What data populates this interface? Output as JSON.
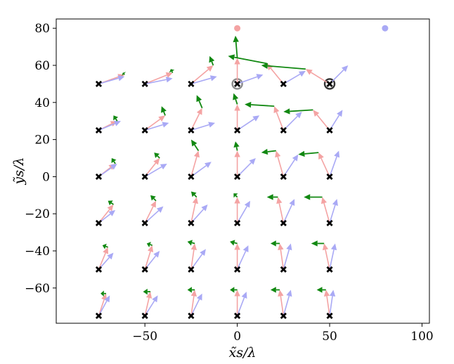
{
  "chart_data": {
    "type": "quiver",
    "title": "",
    "xlabel": "x̃s/λ",
    "ylabel": "ỹs/λ",
    "xlim": [
      -98,
      104
    ],
    "ylim": [
      -79,
      85
    ],
    "xticks": [
      -50,
      0,
      50,
      100
    ],
    "xtick_labels": [
      "−50",
      "0",
      "50",
      "100"
    ],
    "yticks": [
      -60,
      -40,
      -20,
      0,
      20,
      40,
      60,
      80
    ],
    "ytick_labels": [
      "−60",
      "−40",
      "−20",
      "0",
      "20",
      "40",
      "60",
      "80"
    ],
    "grid": false,
    "sources": [
      {
        "name": "source-pink",
        "x": 0,
        "y": 80,
        "color": "#f4a3a3"
      },
      {
        "name": "source-blue",
        "x": 80,
        "y": 80,
        "color": "#a9a9f5"
      }
    ],
    "highlighted_points": [
      {
        "x": 0,
        "y": 50,
        "style": "light-ring"
      },
      {
        "x": 50,
        "y": 50,
        "style": "dark-ring"
      }
    ],
    "grid_x": [
      -75,
      -50,
      -25,
      0,
      25,
      50
    ],
    "grid_y": [
      -75,
      -50,
      -25,
      0,
      25,
      50
    ],
    "colors": {
      "pink": "#f4a3a3",
      "blue": "#a9a9f5",
      "green": "#118811",
      "marker": "#000000"
    },
    "rows": [
      {
        "y": 50,
        "points": [
          {
            "x": -75,
            "pink": [
              14,
              5
            ],
            "blue": [
              14,
              4
            ],
            "green": [
              -1,
              1
            ]
          },
          {
            "x": -50,
            "pink": [
              15,
              6
            ],
            "blue": [
              15,
              3
            ],
            "green": [
              -1,
              2
            ]
          },
          {
            "x": -25,
            "pink": [
              12,
              10
            ],
            "blue": [
              14,
              4
            ],
            "green": [
              -2,
              5
            ]
          },
          {
            "x": 0,
            "pink": [
              0,
              14
            ],
            "blue": [
              14,
              5
            ],
            "green": [
              -1,
              12
            ]
          },
          {
            "x": 25,
            "pink": [
              -9,
              11
            ],
            "blue": [
              12,
              7
            ],
            "green": [
              -21,
              4
            ]
          },
          {
            "x": 50,
            "pink": [
              -13,
              8
            ],
            "blue": [
              10,
              10
            ],
            "green": [
              -24,
              2
            ]
          }
        ]
      },
      {
        "y": 25,
        "points": [
          {
            "x": -75,
            "pink": [
              10,
              5
            ],
            "blue": [
              12,
              5
            ],
            "green": [
              -2,
              3
            ]
          },
          {
            "x": -50,
            "pink": [
              11,
              8
            ],
            "blue": [
              13,
              4
            ],
            "green": [
              -2,
              5
            ]
          },
          {
            "x": -25,
            "pink": [
              6,
              12
            ],
            "blue": [
              13,
              4
            ],
            "green": [
              -3,
              7
            ]
          },
          {
            "x": 0,
            "pink": [
              0,
              14
            ],
            "blue": [
              12,
              8
            ],
            "green": [
              -2,
              6
            ]
          },
          {
            "x": 25,
            "pink": [
              -5,
              13
            ],
            "blue": [
              10,
              10
            ],
            "green": [
              -16,
              1
            ]
          },
          {
            "x": 50,
            "pink": [
              -9,
              11
            ],
            "blue": [
              7,
              11
            ],
            "green": [
              -16,
              -1
            ]
          }
        ]
      },
      {
        "y": 0,
        "points": [
          {
            "x": -75,
            "pink": [
              9,
              7
            ],
            "blue": [
              10,
              7
            ],
            "green": [
              -2,
              3
            ]
          },
          {
            "x": -50,
            "pink": [
              8,
              10
            ],
            "blue": [
              12,
              7
            ],
            "green": [
              -3,
              3
            ]
          },
          {
            "x": -25,
            "pink": [
              4,
              14
            ],
            "blue": [
              11,
              8
            ],
            "green": [
              -4,
              6
            ]
          },
          {
            "x": 0,
            "pink": [
              0,
              14
            ],
            "blue": [
              10,
              10
            ],
            "green": [
              -1,
              5
            ]
          },
          {
            "x": 25,
            "pink": [
              -4,
              14
            ],
            "blue": [
              8,
              12
            ],
            "green": [
              -8,
              -1
            ]
          },
          {
            "x": 50,
            "pink": [
              -6,
              13
            ],
            "blue": [
              5,
              14
            ],
            "green": [
              -11,
              -1
            ]
          }
        ]
      },
      {
        "y": -25,
        "points": [
          {
            "x": -75,
            "pink": [
              8,
              10
            ],
            "blue": [
              9,
              7
            ],
            "green": [
              -3,
              2
            ]
          },
          {
            "x": -50,
            "pink": [
              6,
              12
            ],
            "blue": [
              10,
              9
            ],
            "green": [
              -3,
              3
            ]
          },
          {
            "x": -25,
            "pink": [
              3,
              14
            ],
            "blue": [
              9,
              10
            ],
            "green": [
              -3,
              3
            ]
          },
          {
            "x": 0,
            "pink": [
              0,
              14
            ],
            "blue": [
              7,
              12
            ],
            "green": [
              -2,
              2
            ]
          },
          {
            "x": 25,
            "pink": [
              -3,
              14
            ],
            "blue": [
              6,
              13
            ],
            "green": [
              -6,
              0
            ]
          },
          {
            "x": 50,
            "pink": [
              -4,
              14
            ],
            "blue": [
              4,
              13
            ],
            "green": [
              -10,
              0
            ]
          }
        ]
      },
      {
        "y": -50,
        "points": [
          {
            "x": -75,
            "pink": [
              5,
              12
            ],
            "blue": [
              8,
              9
            ],
            "green": [
              -3,
              1
            ]
          },
          {
            "x": -50,
            "pink": [
              4,
              13
            ],
            "blue": [
              8,
              10
            ],
            "green": [
              -3,
              1
            ]
          },
          {
            "x": -25,
            "pink": [
              2,
              14
            ],
            "blue": [
              8,
              11
            ],
            "green": [
              -4,
              1
            ]
          },
          {
            "x": 0,
            "pink": [
              0,
              14
            ],
            "blue": [
              6,
              13
            ],
            "green": [
              -4,
              1
            ]
          },
          {
            "x": 25,
            "pink": [
              -2,
              14
            ],
            "blue": [
              4,
              14
            ],
            "green": [
              -5,
              0
            ]
          },
          {
            "x": 50,
            "pink": [
              -3,
              14
            ],
            "blue": [
              3,
              14
            ],
            "green": [
              -7,
              0
            ]
          }
        ]
      },
      {
        "y": -75,
        "points": [
          {
            "x": -75,
            "pink": [
              4,
              12
            ],
            "blue": [
              6,
              11
            ],
            "green": [
              -3,
              0
            ]
          },
          {
            "x": -50,
            "pink": [
              3,
              13
            ],
            "blue": [
              7,
              11
            ],
            "green": [
              -4,
              0
            ]
          },
          {
            "x": -25,
            "pink": [
              2,
              14
            ],
            "blue": [
              6,
              12
            ],
            "green": [
              -4,
              0
            ]
          },
          {
            "x": 0,
            "pink": [
              0,
              14
            ],
            "blue": [
              5,
              13
            ],
            "green": [
              -4,
              0
            ]
          },
          {
            "x": 25,
            "pink": [
              -2,
              14
            ],
            "blue": [
              4,
              14
            ],
            "green": [
              -5,
              0
            ]
          },
          {
            "x": 50,
            "pink": [
              -2,
              14
            ],
            "blue": [
              2,
              14
            ],
            "green": [
              -5,
              0
            ]
          }
        ]
      }
    ]
  }
}
